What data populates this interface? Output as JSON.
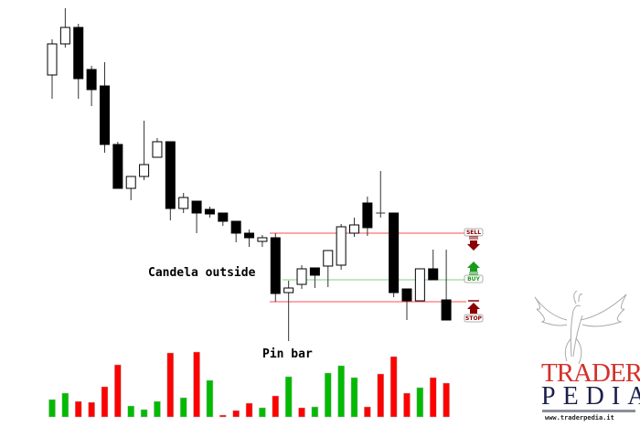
{
  "chart_data": {
    "type": "candlestick",
    "title": "",
    "xlabel": "",
    "ylabel": "",
    "grid": false,
    "candles": [
      {
        "o": 418,
        "h": 457,
        "l": 392,
        "c": 452
      },
      {
        "o": 452,
        "h": 491,
        "l": 448,
        "c": 470
      },
      {
        "o": 470,
        "h": 474,
        "l": 392,
        "c": 414
      },
      {
        "o": 424,
        "h": 428,
        "l": 384,
        "c": 402
      },
      {
        "o": 406,
        "h": 432,
        "l": 333,
        "c": 342
      },
      {
        "o": 342,
        "h": 345,
        "l": 294,
        "c": 294
      },
      {
        "o": 294,
        "h": 307,
        "l": 281,
        "c": 307
      },
      {
        "o": 307,
        "h": 368,
        "l": 303,
        "c": 320
      },
      {
        "o": 328,
        "h": 349,
        "l": 328,
        "c": 345
      },
      {
        "o": 345,
        "h": 345,
        "l": 259,
        "c": 272
      },
      {
        "o": 272,
        "h": 289,
        "l": 267,
        "c": 284
      },
      {
        "o": 280,
        "h": 280,
        "l": 245,
        "c": 267
      },
      {
        "o": 271,
        "h": 274,
        "l": 262,
        "c": 266
      },
      {
        "o": 267,
        "h": 267,
        "l": 253,
        "c": 258
      },
      {
        "o": 258,
        "h": 258,
        "l": 235,
        "c": 245
      },
      {
        "o": 245,
        "h": 249,
        "l": 230,
        "c": 240
      },
      {
        "o": 236,
        "h": 243,
        "l": 230,
        "c": 240
      },
      {
        "o": 240,
        "h": 245,
        "l": 170,
        "c": 179
      },
      {
        "o": 180,
        "h": 193,
        "l": 127,
        "c": 185
      },
      {
        "o": 189,
        "h": 210,
        "l": 184,
        "c": 206
      },
      {
        "o": 207,
        "h": 207,
        "l": 185,
        "c": 199
      },
      {
        "o": 209,
        "h": 226,
        "l": 186,
        "c": 226
      },
      {
        "o": 210,
        "h": 255,
        "l": 205,
        "c": 252
      },
      {
        "o": 245,
        "h": 262,
        "l": 241,
        "c": 254
      },
      {
        "o": 278,
        "h": 285,
        "l": 242,
        "c": 251
      },
      {
        "o": 267,
        "h": 313,
        "l": 262,
        "c": 267
      },
      {
        "o": 267,
        "h": 267,
        "l": 175,
        "c": 180
      },
      {
        "o": 184,
        "h": 184,
        "l": 150,
        "c": 171
      },
      {
        "o": 171,
        "h": 206,
        "l": 171,
        "c": 206
      },
      {
        "o": 206,
        "h": 227,
        "l": 194,
        "c": 194
      },
      {
        "o": 172,
        "h": 227,
        "l": 150,
        "c": 150
      }
    ],
    "volume": [
      19,
      26,
      17,
      16,
      33,
      57,
      12,
      8,
      17,
      70,
      21,
      71,
      40,
      2,
      7,
      15,
      10,
      23,
      44,
      10,
      11,
      48,
      56,
      43,
      11,
      47,
      66,
      26,
      32,
      43,
      37
    ],
    "volume_colors": [
      "green",
      "green",
      "red",
      "red",
      "red",
      "red",
      "green",
      "green",
      "green",
      "red",
      "green",
      "red",
      "green",
      "red",
      "red",
      "red",
      "green",
      "red",
      "green",
      "red",
      "green",
      "green",
      "green",
      "green",
      "red",
      "red",
      "red",
      "red",
      "green",
      "red",
      "red"
    ],
    "levels": [
      {
        "label": "SELL",
        "price": 245,
        "color": "#ff4d4d",
        "icon": "arrow-down-icon"
      },
      {
        "label": "BUY",
        "price": 194,
        "color": "#7fd18a",
        "icon": "arrow-up-icon"
      },
      {
        "label": "STOP",
        "price": 170,
        "color": "#ff4d4d",
        "icon": "arrow-up-bar-icon"
      }
    ],
    "annotations": [
      "Candela outside",
      "Pin bar"
    ],
    "colors": {
      "bull_body": "#ffffff",
      "bear_body": "#000000",
      "vol_green": "#00bb00",
      "vol_red": "#ff0000",
      "sell": "#8b0000",
      "buy": "#1a9a1a",
      "stop": "#8b0000"
    }
  },
  "logo": {
    "line1": "TRADER",
    "line2": "PEDIA",
    "url": "www.traderpedia.it"
  }
}
